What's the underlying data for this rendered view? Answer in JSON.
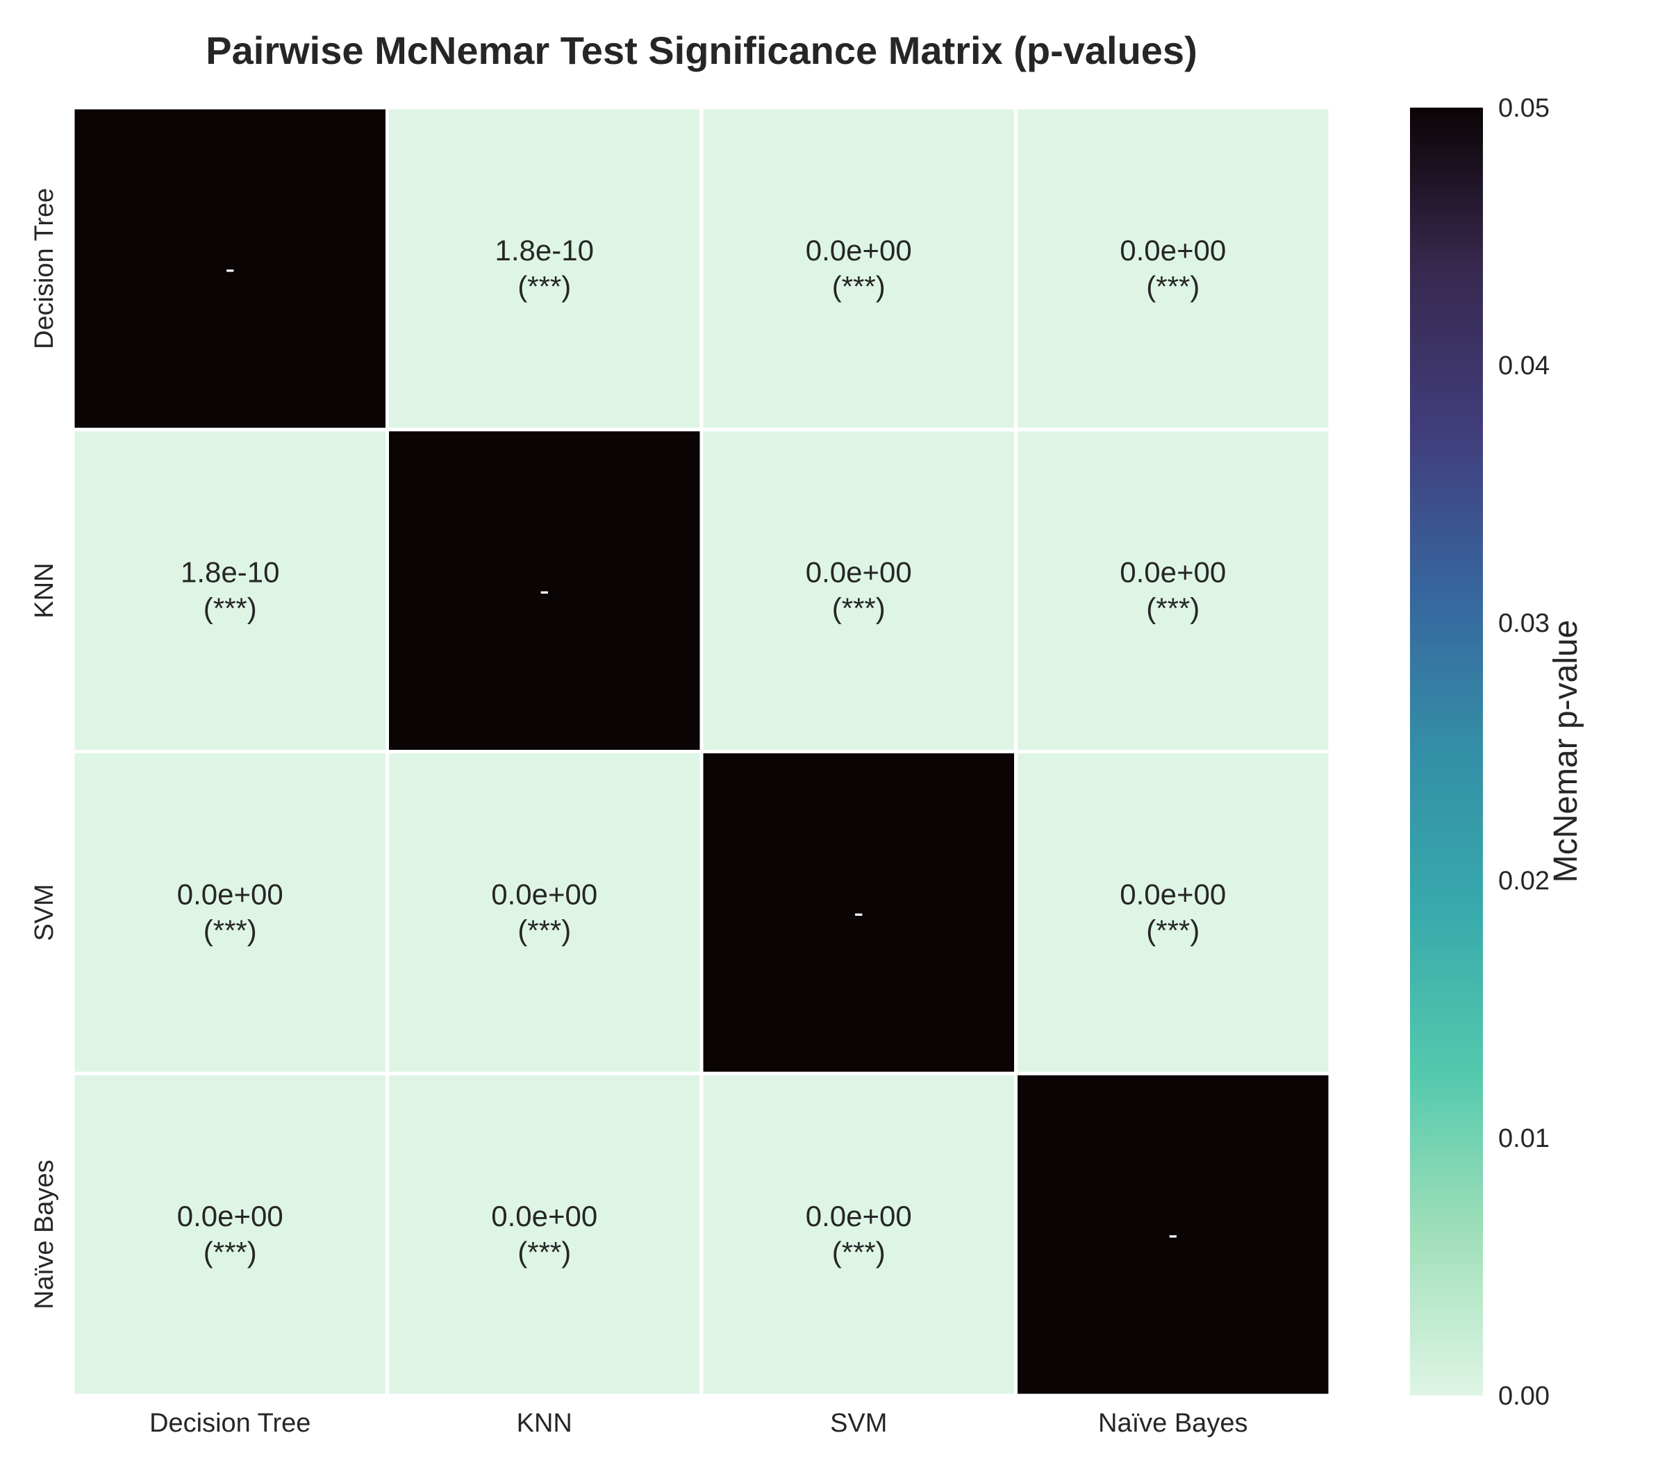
{
  "chart_data": {
    "type": "heatmap",
    "title": "Pairwise McNemar Test Significance Matrix (p-values)",
    "x_labels": [
      "Decision Tree",
      "KNN",
      "SVM",
      "Naïve Bayes"
    ],
    "y_labels": [
      "Decision Tree",
      "KNN",
      "SVM",
      "Naïve Bayes"
    ],
    "values": [
      [
        0.05,
        1.8e-10,
        0.0,
        0.0
      ],
      [
        1.8e-10,
        0.05,
        0.0,
        0.0
      ],
      [
        0.0,
        0.0,
        0.05,
        0.0
      ],
      [
        0.0,
        0.0,
        0.0,
        0.05
      ]
    ],
    "annotations": [
      [
        [
          "-",
          ""
        ],
        [
          "1.8e-10",
          "(***)"
        ],
        [
          "0.0e+00",
          "(***)"
        ],
        [
          "0.0e+00",
          "(***)"
        ]
      ],
      [
        [
          "1.8e-10",
          "(***)"
        ],
        [
          "-",
          ""
        ],
        [
          "0.0e+00",
          "(***)"
        ],
        [
          "0.0e+00",
          "(***)"
        ]
      ],
      [
        [
          "0.0e+00",
          "(***)"
        ],
        [
          "0.0e+00",
          "(***)"
        ],
        [
          "-",
          ""
        ],
        [
          "0.0e+00",
          "(***)"
        ]
      ],
      [
        [
          "0.0e+00",
          "(***)"
        ],
        [
          "0.0e+00",
          "(***)"
        ],
        [
          "0.0e+00",
          "(***)"
        ],
        [
          "-",
          ""
        ]
      ]
    ],
    "colorbar": {
      "label": "McNemar p-value",
      "range": [
        0,
        0.05
      ],
      "ticks": [
        "0.00",
        "0.01",
        "0.02",
        "0.03",
        "0.04",
        "0.05"
      ],
      "colors": [
        "#def5e5",
        "#a0dfb9",
        "#54c9ad",
        "#38aaac",
        "#348fa7",
        "#37659e",
        "#413d7b",
        "#37294f",
        "#0b0405"
      ]
    },
    "grid": false
  }
}
